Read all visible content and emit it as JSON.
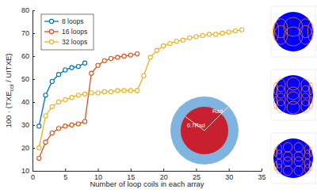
{
  "chart_data": {
    "type": "line",
    "xlabel": "Number of loop coils in each array",
    "ylabel": [
      "100 · (TXE",
      "col",
      " / UITXE)"
    ],
    "annotations": [
      "Rad",
      "0.7Rad"
    ],
    "xlim": [
      0,
      35
    ],
    "xticks": [
      0,
      5,
      10,
      15,
      20,
      25,
      30,
      35
    ],
    "ylim": [
      10,
      80
    ],
    "yticks": [
      10,
      20,
      30,
      40,
      50,
      60,
      70,
      80
    ],
    "grid": false,
    "legend": "upper left",
    "marker": "circle",
    "line_style": "solid",
    "series": [
      {
        "name": "8 loops",
        "color": "#0072bd",
        "x": [
          1,
          2,
          3,
          4,
          5,
          6,
          7,
          8
        ],
        "values": [
          29.5,
          43,
          49,
          52,
          54,
          55,
          55.5,
          57
        ]
      },
      {
        "name": "16 loops",
        "color": "#d95319",
        "x": [
          1,
          2,
          3,
          4,
          5,
          6,
          7,
          8,
          9,
          10,
          11,
          12,
          13,
          14,
          15,
          16
        ],
        "values": [
          15.5,
          22.5,
          26.5,
          28.5,
          29.5,
          30,
          30.5,
          31.5,
          52.5,
          56,
          58,
          59,
          59.5,
          60,
          60.5,
          61
        ]
      },
      {
        "name": "32 loops",
        "color": "#edb120",
        "x": [
          1,
          2,
          3,
          4,
          5,
          6,
          7,
          8,
          9,
          10,
          11,
          12,
          13,
          14,
          15,
          16,
          17,
          18,
          19,
          20,
          21,
          22,
          23,
          24,
          25,
          26,
          27,
          28,
          29,
          30,
          31,
          32
        ],
        "values": [
          20,
          34,
          38,
          40,
          41,
          42,
          43,
          43.5,
          44,
          44,
          44.5,
          44.5,
          45,
          45,
          45,
          45,
          51.5,
          59.5,
          62.5,
          64.5,
          65.5,
          66.5,
          67,
          68,
          68.5,
          69,
          69.5,
          69.5,
          70,
          70.5,
          71,
          71.5
        ]
      }
    ]
  }
}
